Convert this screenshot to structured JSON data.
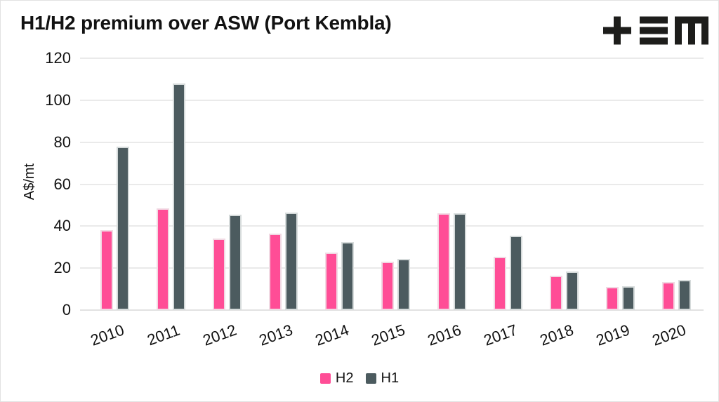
{
  "page": {
    "title": "H1/H2 premium over ASW (Port Kembla)"
  },
  "logo": {
    "name": "plus-equals-m-logo",
    "color": "#1d1d1b"
  },
  "chart_data": {
    "type": "bar",
    "title": "H1/H2 premium over ASW (Port Kembla)",
    "xlabel": "",
    "ylabel": "A$/mt",
    "categories": [
      "2010",
      "2011",
      "2012",
      "2013",
      "2014",
      "2015",
      "2016",
      "2017",
      "2018",
      "2019",
      "2020"
    ],
    "series": [
      {
        "name": "H2",
        "color": "#FF4D96",
        "values": [
          38,
          48.5,
          34,
          36.5,
          27.5,
          23,
          46,
          25.5,
          16.5,
          11,
          13.5
        ]
      },
      {
        "name": "H1",
        "color": "#4C5B5F",
        "values": [
          78,
          108,
          45.5,
          46.5,
          32.5,
          24.5,
          46,
          35.5,
          18.5,
          11.5,
          14.5
        ]
      }
    ],
    "ylim": [
      0,
      120
    ],
    "ytick_interval": 20,
    "grid": true,
    "legend_position": "bottom",
    "legend": [
      "H2",
      "H1"
    ]
  }
}
